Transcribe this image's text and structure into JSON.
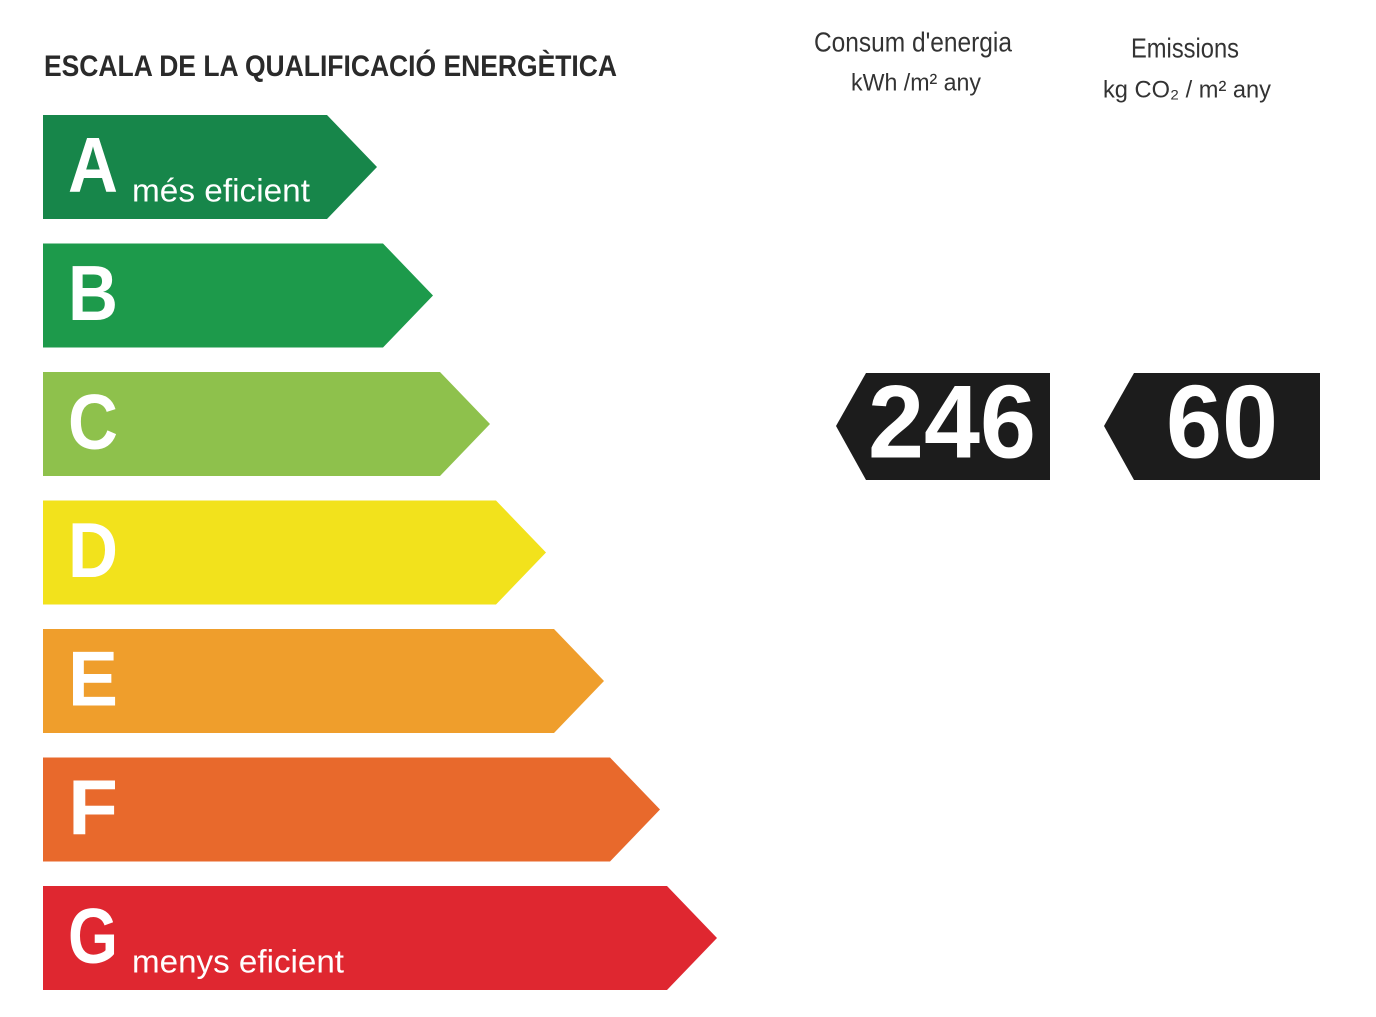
{
  "title": "ESCALA DE LA QUALIFICACIÓ ENERGÈTICA",
  "classes": [
    {
      "letter": "A",
      "note": "més eficient"
    },
    {
      "letter": "B"
    },
    {
      "letter": "C"
    },
    {
      "letter": "D"
    },
    {
      "letter": "E"
    },
    {
      "letter": "F"
    },
    {
      "letter": "G",
      "note": "menys eficient"
    }
  ],
  "consumption": {
    "header": "Consum d'energia",
    "unit": "kWh /m² any",
    "value": 246
  },
  "emissions": {
    "header": "Emissions",
    "unit": "kg CO₂ / m² any",
    "value": 60
  }
}
